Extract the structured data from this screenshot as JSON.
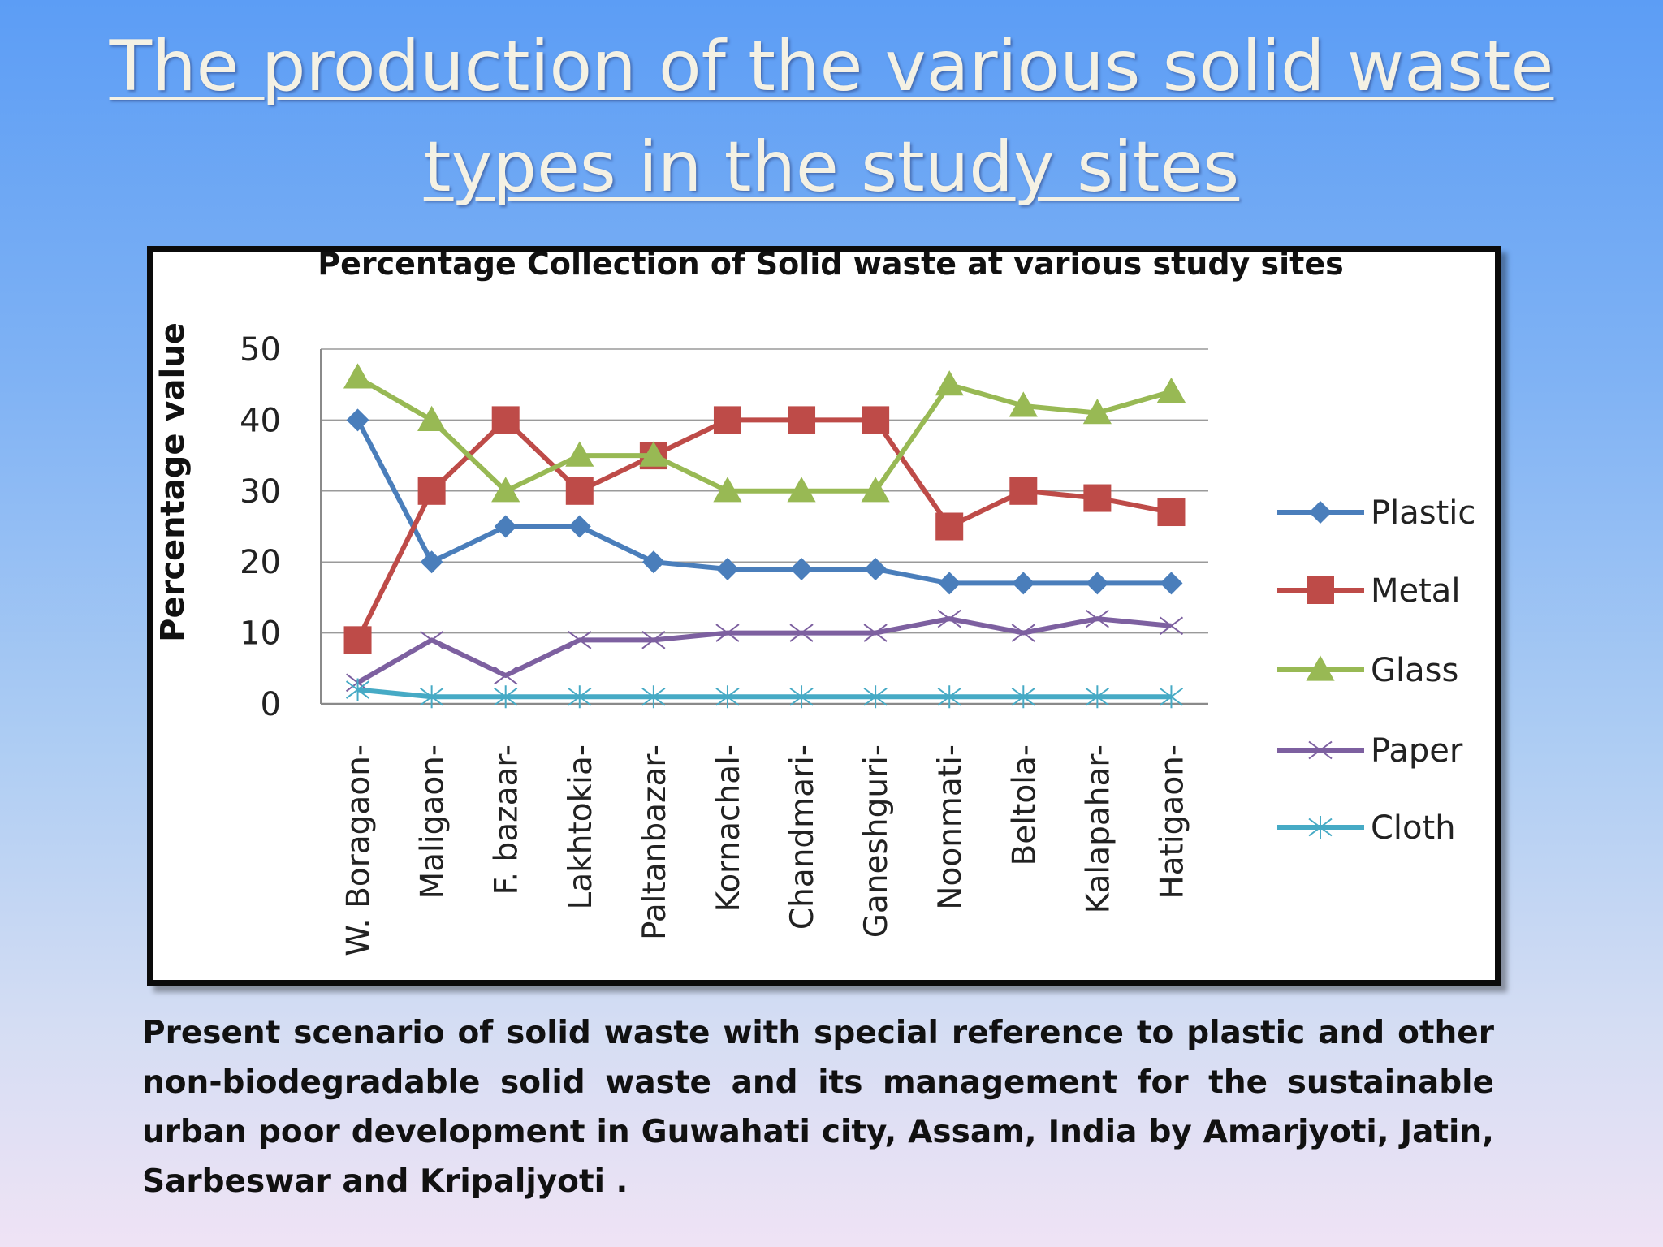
{
  "slide": {
    "title_line1": "The production of the various solid waste",
    "title_line2": "types in the study sites",
    "caption": "Present scenario of solid waste with special reference to plastic and other non-biodegradable solid waste and its management for the sustainable urban poor development in Guwahati city, Assam, India by Amarjyoti, Jatin, Sarbeswar and Kripaljyoti ."
  },
  "chart_data": {
    "type": "line",
    "title": "Percentage Collection of Solid waste at various study sites",
    "xlabel": "",
    "ylabel": "Percentage value",
    "ylim": [
      0,
      50
    ],
    "yticks": [
      0,
      10,
      20,
      30,
      40,
      50
    ],
    "grid": true,
    "legend": "right",
    "categories": [
      "W. Boragaon-",
      "Maligaon-",
      "F. bazaar-",
      "Lakhtokia-",
      "Paltanbazar-",
      "Kornachal-",
      "Chandmari-",
      "Ganeshguri-",
      "Noonmati-",
      "Beltola-",
      "Kalapahar-",
      "Hatigaon-"
    ],
    "series": [
      {
        "name": "Plastic",
        "color": "#4a7ebb",
        "marker": "diamond",
        "values": [
          40,
          20,
          25,
          25,
          20,
          19,
          19,
          19,
          17,
          17,
          17,
          17
        ]
      },
      {
        "name": "Metal",
        "color": "#be4b48",
        "marker": "square",
        "values": [
          9,
          30,
          40,
          30,
          35,
          40,
          40,
          40,
          25,
          30,
          29,
          27
        ]
      },
      {
        "name": "Glass",
        "color": "#98b954",
        "marker": "triangle",
        "values": [
          46,
          40,
          30,
          35,
          35,
          30,
          30,
          30,
          45,
          42,
          41,
          44
        ]
      },
      {
        "name": "Paper",
        "color": "#7d60a0",
        "marker": "x",
        "values": [
          3,
          9,
          4,
          9,
          9,
          10,
          10,
          10,
          12,
          10,
          12,
          11
        ]
      },
      {
        "name": "Cloth",
        "color": "#46aac5",
        "marker": "star",
        "values": [
          2,
          1,
          1,
          1,
          1,
          1,
          1,
          1,
          1,
          1,
          1,
          1
        ]
      }
    ]
  }
}
